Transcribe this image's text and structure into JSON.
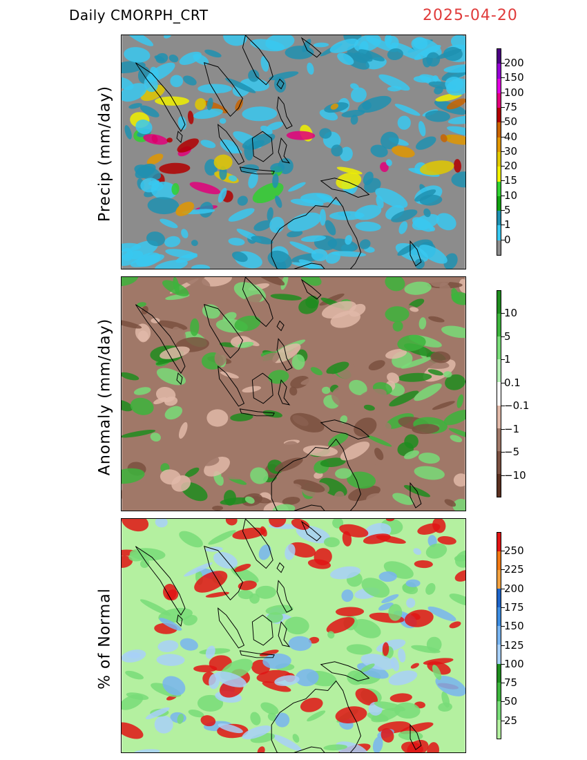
{
  "header": {
    "title": "Daily  CMORPH_CRT",
    "date": "2025-04-20",
    "date_color": "#e03a3a"
  },
  "panels": [
    {
      "ylabel": "Precip  (mm/day)",
      "background": "#8c8c8c",
      "legend": {
        "labels": [
          "200",
          "150",
          "100",
          "75",
          "50",
          "40",
          "30",
          "20",
          "15",
          "10",
          "5",
          "1",
          "0"
        ],
        "colors": [
          "#4b0082",
          "#9400d3",
          "#e000e0",
          "#e0007a",
          "#b00000",
          "#c86400",
          "#e09600",
          "#e0c800",
          "#f0f000",
          "#30d030",
          "#10a010",
          "#1e90b0",
          "#38c8f0",
          "#8c8c8c"
        ]
      }
    },
    {
      "ylabel": "Anomaly  (mm/day)",
      "background": "#a07868",
      "legend": {
        "labels": [
          "10",
          "5",
          "1",
          "0.1",
          "−0.1",
          "−1",
          "−5",
          "−10"
        ],
        "colors": [
          "#1e8c1e",
          "#3cb43c",
          "#78dc78",
          "#b4f0b4",
          "#ffffff",
          "#e0b8a8",
          "#a07868",
          "#7a5040",
          "#5a3020"
        ]
      }
    },
    {
      "ylabel": "%  of  Normal",
      "background": "#b4f0a0",
      "legend": {
        "labels": [
          "250",
          "225",
          "200",
          "175",
          "150",
          "125",
          "100",
          "75",
          "50",
          "25"
        ],
        "colors": [
          "#e01414",
          "#f07814",
          "#f0a040",
          "#1e64c8",
          "#3c8ce0",
          "#78b4f0",
          "#a8d0f8",
          "#1e8c1e",
          "#3cb43c",
          "#78dc78",
          "#b4f0a0"
        ]
      }
    }
  ]
}
